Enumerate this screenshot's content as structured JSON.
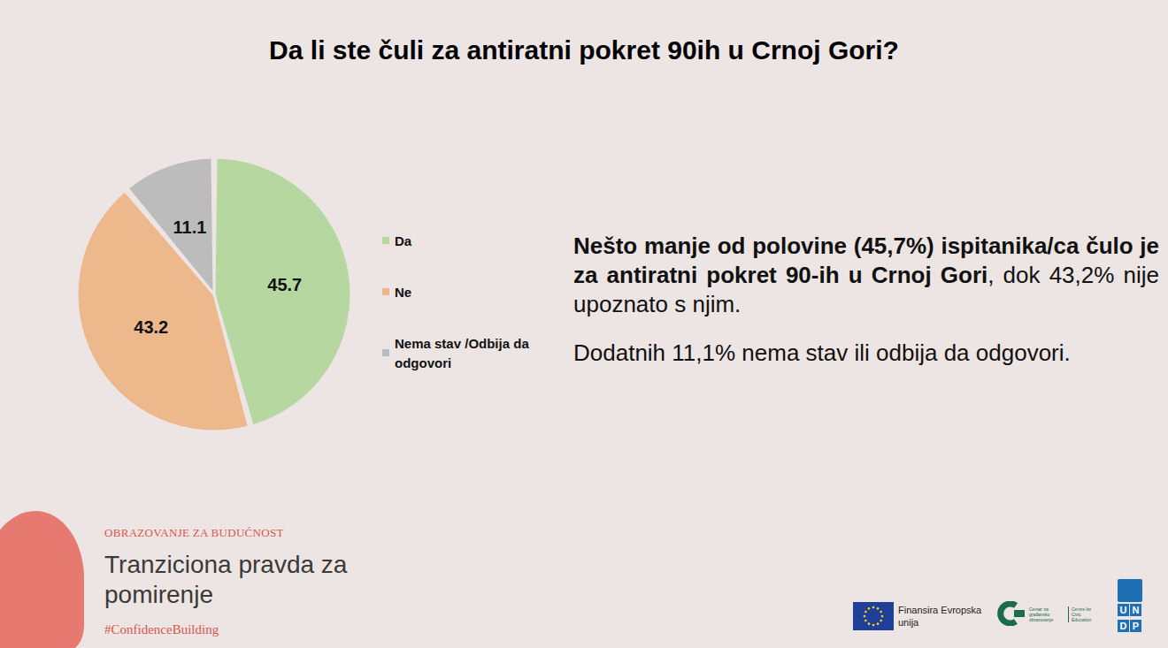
{
  "chart_data": {
    "type": "pie",
    "title": "Da li ste čuli za antiratni pokret 90ih u Crnoj Gori?",
    "categories": [
      "Da",
      "Ne",
      "Nema stav /Odbija da odgovori"
    ],
    "values": [
      45.7,
      43.2,
      11.1
    ],
    "colors": [
      "#b6d7a0",
      "#edb88c",
      "#bcbcbc"
    ],
    "data_labels": true,
    "legend": "right",
    "annotations": [
      "Nešto manje od polovine (45,7%) ispitanika/ca čulo je za antiratni pokret 90-ih u Crnoj Gori",
      ", dok 43,2% nije upoznato s njim.",
      "Dodatnih 11,1% nema stav ili odbija da odgovori."
    ]
  },
  "footer": {
    "project_kicker": "OBRAZOVANJE ZA BUDUĆNOST",
    "project_title": "Tranziciona pravda za pomirenje",
    "hashtag": "#ConfidenceBuilding",
    "funding": "Finansira Evropska unija",
    "partner": [
      "Centar za građansko obrazovanje",
      "Centre for Civic Education"
    ],
    "undp": "UNDP"
  }
}
